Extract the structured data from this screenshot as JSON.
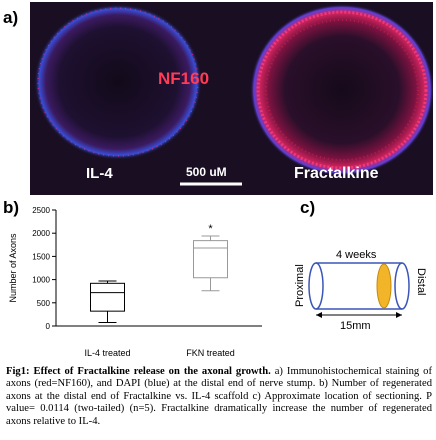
{
  "panel_labels": {
    "a": "a)",
    "b": "b)",
    "c": "c)"
  },
  "micrograph": {
    "left_label": "IL-4",
    "right_label": "Fractalkine",
    "center_label": "NF160",
    "scale_bar_label": "500 uM",
    "colors": {
      "background": "#1a0f22",
      "axon": "#ff2d6e",
      "dapi": "#4a5cff",
      "center_label": "#ff3b55"
    }
  },
  "chart_data": {
    "type": "boxplot",
    "categories": [
      "IL-4 treated",
      "FKN treated"
    ],
    "ylabel": "Number of Axons",
    "ylim": [
      0,
      2500
    ],
    "yticks": [
      0,
      500,
      1000,
      1500,
      2000,
      2500
    ],
    "series": [
      {
        "category": "IL-4 treated",
        "min": 75,
        "q1": 320,
        "median": 720,
        "q3": 920,
        "max": 970,
        "color": "#000000"
      },
      {
        "category": "FKN treated",
        "min": 760,
        "q1": 1040,
        "median": 1680,
        "q3": 1840,
        "max": 1940,
        "color": "#999999"
      }
    ],
    "annotations": [
      {
        "category": "FKN treated",
        "text": "*"
      }
    ]
  },
  "diagram": {
    "top_label": "4 weeks",
    "left_label": "Proximal",
    "right_label": "Distal",
    "bottom_label": "15mm",
    "band_color": "#f2b52a",
    "tube_color": "#3a55b8"
  },
  "caption": {
    "bold": "Fig1: Effect of Fractalkine release on the axonal growth.",
    "text": " a) Immunohistochemical staining of axons (red=NF160), and DAPI (blue) at the distal end of nerve stump. b) Number of regenerated axons at the distal end of Fractalkine vs. IL-4 scaffold c) Approximate location of sectioning. P value= 0.0114 (two-tailed) (n=5). Fractalkine dramatically increase the number of regenerated axons relative to IL-4."
  }
}
